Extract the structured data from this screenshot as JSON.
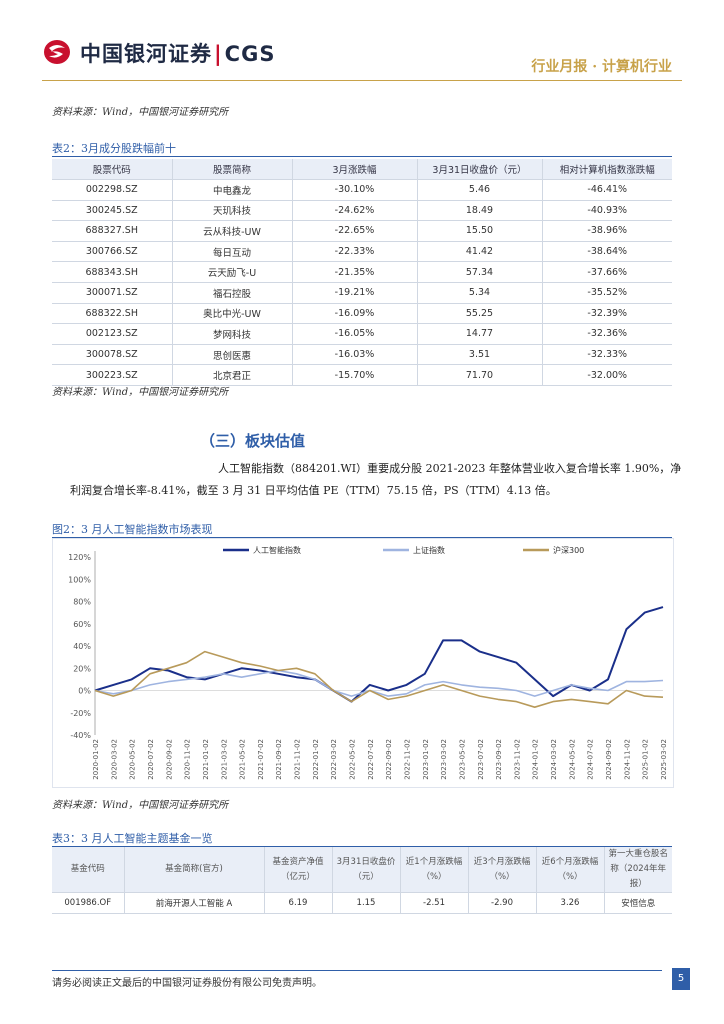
{
  "header": {
    "company": "中国银河证券",
    "brand": "CGS",
    "report_type": "行业月报 · 计算机行业"
  },
  "source_1": "资料来源：Wind，中国银河证券研究所",
  "table2": {
    "caption": "表2：3月成分股跌幅前十",
    "columns": [
      "股票代码",
      "股票简称",
      "3月涨跌幅",
      "3月31日收盘价（元）",
      "相对计算机指数涨跌幅"
    ],
    "rows": [
      [
        "002298.SZ",
        "中电鑫龙",
        "-30.10%",
        "5.46",
        "-46.41%"
      ],
      [
        "300245.SZ",
        "天玑科技",
        "-24.62%",
        "18.49",
        "-40.93%"
      ],
      [
        "688327.SH",
        "云从科技-UW",
        "-22.65%",
        "15.50",
        "-38.96%"
      ],
      [
        "300766.SZ",
        "每日互动",
        "-22.33%",
        "41.42",
        "-38.64%"
      ],
      [
        "688343.SH",
        "云天励飞-U",
        "-21.35%",
        "57.34",
        "-37.66%"
      ],
      [
        "300071.SZ",
        "福石控股",
        "-19.21%",
        "5.34",
        "-35.52%"
      ],
      [
        "688322.SH",
        "奥比中光-UW",
        "-16.09%",
        "55.25",
        "-32.39%"
      ],
      [
        "002123.SZ",
        "梦网科技",
        "-16.05%",
        "14.77",
        "-32.36%"
      ],
      [
        "300078.SZ",
        "思创医惠",
        "-16.03%",
        "3.51",
        "-32.33%"
      ],
      [
        "300223.SZ",
        "北京君正",
        "-15.70%",
        "71.70",
        "-32.00%"
      ]
    ]
  },
  "source_2": "资料来源：Wind，中国银河证券研究所",
  "section": {
    "title": "（三）板块估值",
    "para_line1": "人工智能指数（884201.WI）重要成分股 2021-2023 年整体营业收入复合增长率 1.90%，净",
    "para_line2": "利润复合增长率-8.41%，截至 3 月 31 日平均估值 PE（TTM）75.15 倍，PS（TTM）4.13 倍。"
  },
  "figure2": {
    "caption": "图2：3 月人工智能指数市场表现"
  },
  "chart_data": {
    "type": "line",
    "title": "",
    "xlabel": "",
    "ylabel": "",
    "ylim": [
      -40,
      120
    ],
    "yticks": [
      "120%",
      "100%",
      "80%",
      "60%",
      "40%",
      "20%",
      "0%",
      "-20%",
      "-40%"
    ],
    "x": [
      "2020-01-02",
      "2020-03-02",
      "2020-05-02",
      "2020-07-02",
      "2020-09-02",
      "2020-11-02",
      "2021-01-02",
      "2021-03-02",
      "2021-05-02",
      "2021-07-02",
      "2021-09-02",
      "2021-11-02",
      "2022-01-02",
      "2022-03-02",
      "2022-05-02",
      "2022-07-02",
      "2022-09-02",
      "2022-11-02",
      "2023-01-02",
      "2023-03-02",
      "2023-05-02",
      "2023-07-02",
      "2023-09-02",
      "2023-11-02",
      "2024-01-02",
      "2024-03-02",
      "2024-05-02",
      "2024-07-02",
      "2024-09-02",
      "2024-11-02",
      "2025-01-02",
      "2025-03-02"
    ],
    "legend_position": "top",
    "grid": false,
    "series": [
      {
        "name": "人工智能指数",
        "color": "#1a2f8a",
        "values": [
          0,
          5,
          10,
          20,
          18,
          12,
          10,
          15,
          20,
          18,
          15,
          12,
          10,
          0,
          -10,
          5,
          0,
          5,
          15,
          45,
          45,
          35,
          30,
          25,
          10,
          -5,
          5,
          0,
          10,
          55,
          70,
          75
        ]
      },
      {
        "name": "上证指数",
        "color": "#9fb4e0",
        "values": [
          0,
          -3,
          0,
          5,
          8,
          10,
          12,
          15,
          12,
          15,
          18,
          15,
          10,
          0,
          -5,
          0,
          -5,
          -3,
          5,
          8,
          5,
          3,
          2,
          0,
          -5,
          0,
          5,
          2,
          0,
          8,
          8,
          9
        ]
      },
      {
        "name": "沪深300",
        "color": "#b89a5a",
        "values": [
          0,
          -5,
          0,
          15,
          20,
          25,
          35,
          30,
          25,
          22,
          18,
          20,
          15,
          0,
          -10,
          0,
          -8,
          -5,
          0,
          5,
          0,
          -5,
          -8,
          -10,
          -15,
          -10,
          -8,
          -10,
          -12,
          0,
          -5,
          -6
        ]
      }
    ]
  },
  "source_3": "资料来源：Wind，中国银河证券研究所",
  "table3": {
    "caption": "表3：3 月人工智能主题基金一览",
    "columns": [
      "基金代码",
      "基金简称(官方)",
      "基金资产净值（亿元）",
      "3月31日收盘价（元）",
      "近1个月涨跌幅（%）",
      "近3个月涨跌幅（%）",
      "近6个月涨跌幅（%）",
      "第一大重仓股名称（2024年年报）"
    ],
    "rows": [
      [
        "001986.OF",
        "前海开源人工智能 A",
        "6.19",
        "1.15",
        "-2.51",
        "-2.90",
        "3.26",
        "安恒信息"
      ]
    ]
  },
  "footer": {
    "disclaimer": "请务必阅读正文最后的中国银河证券股份有限公司免责声明。",
    "page": "5"
  }
}
